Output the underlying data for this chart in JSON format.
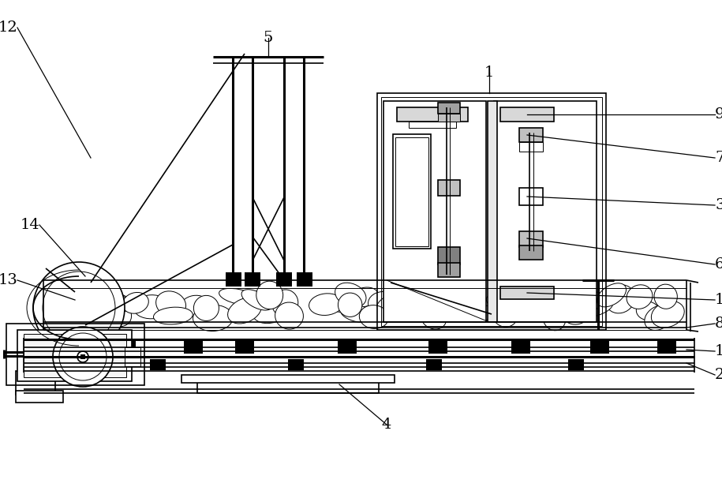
{
  "bg_color": "#ffffff",
  "lc": "#000000",
  "lw": 1.2,
  "tlw": 0.7,
  "thk": 2.2,
  "fig_w": 9.15,
  "fig_h": 6.17,
  "dpi": 100
}
